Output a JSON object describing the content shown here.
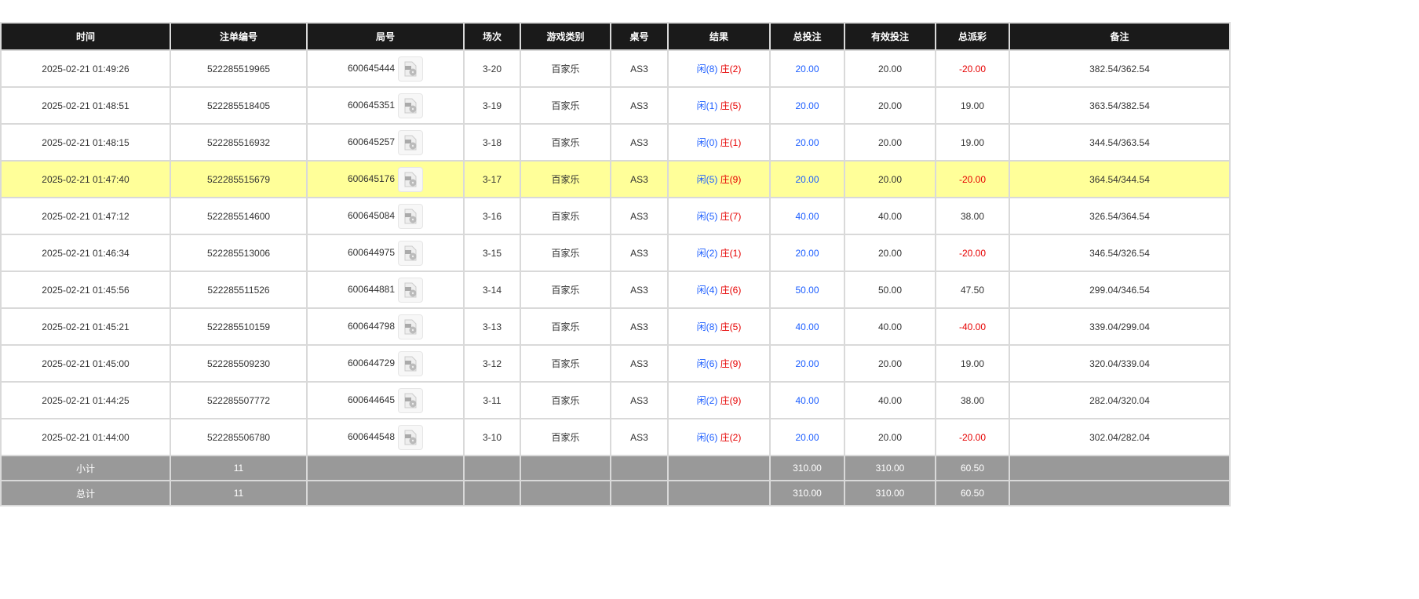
{
  "columns": [
    "时间",
    "注单编号",
    "局号",
    "场次",
    "游戏类别",
    "桌号",
    "结果",
    "总投注",
    "有效投注",
    "总派彩",
    "备注"
  ],
  "rows": [
    {
      "time": "2025-02-21 01:49:26",
      "bet_id": "522285519965",
      "round": "600645444",
      "shoe": "3-20",
      "game": "百家乐",
      "table": "AS3",
      "player": "闲(8)",
      "banker": "庄(2)",
      "total": "20.00",
      "valid": "20.00",
      "payout": "-20.00",
      "note": "382.54/362.54"
    },
    {
      "time": "2025-02-21 01:48:51",
      "bet_id": "522285518405",
      "round": "600645351",
      "shoe": "3-19",
      "game": "百家乐",
      "table": "AS3",
      "player": "闲(1)",
      "banker": "庄(5)",
      "total": "20.00",
      "valid": "20.00",
      "payout": "19.00",
      "note": "363.54/382.54"
    },
    {
      "time": "2025-02-21 01:48:15",
      "bet_id": "522285516932",
      "round": "600645257",
      "shoe": "3-18",
      "game": "百家乐",
      "table": "AS3",
      "player": "闲(0)",
      "banker": "庄(1)",
      "total": "20.00",
      "valid": "20.00",
      "payout": "19.00",
      "note": "344.54/363.54"
    },
    {
      "time": "2025-02-21 01:47:40",
      "bet_id": "522285515679",
      "round": "600645176",
      "shoe": "3-17",
      "game": "百家乐",
      "table": "AS3",
      "player": "闲(5)",
      "banker": "庄(9)",
      "total": "20.00",
      "valid": "20.00",
      "payout": "-20.00",
      "note": "364.54/344.54",
      "highlight": true
    },
    {
      "time": "2025-02-21 01:47:12",
      "bet_id": "522285514600",
      "round": "600645084",
      "shoe": "3-16",
      "game": "百家乐",
      "table": "AS3",
      "player": "闲(5)",
      "banker": "庄(7)",
      "total": "40.00",
      "valid": "40.00",
      "payout": "38.00",
      "note": "326.54/364.54"
    },
    {
      "time": "2025-02-21 01:46:34",
      "bet_id": "522285513006",
      "round": "600644975",
      "shoe": "3-15",
      "game": "百家乐",
      "table": "AS3",
      "player": "闲(2)",
      "banker": "庄(1)",
      "total": "20.00",
      "valid": "20.00",
      "payout": "-20.00",
      "note": "346.54/326.54"
    },
    {
      "time": "2025-02-21 01:45:56",
      "bet_id": "522285511526",
      "round": "600644881",
      "shoe": "3-14",
      "game": "百家乐",
      "table": "AS3",
      "player": "闲(4)",
      "banker": "庄(6)",
      "total": "50.00",
      "valid": "50.00",
      "payout": "47.50",
      "note": "299.04/346.54"
    },
    {
      "time": "2025-02-21 01:45:21",
      "bet_id": "522285510159",
      "round": "600644798",
      "shoe": "3-13",
      "game": "百家乐",
      "table": "AS3",
      "player": "闲(8)",
      "banker": "庄(5)",
      "total": "40.00",
      "valid": "40.00",
      "payout": "-40.00",
      "note": "339.04/299.04"
    },
    {
      "time": "2025-02-21 01:45:00",
      "bet_id": "522285509230",
      "round": "600644729",
      "shoe": "3-12",
      "game": "百家乐",
      "table": "AS3",
      "player": "闲(6)",
      "banker": "庄(9)",
      "total": "20.00",
      "valid": "20.00",
      "payout": "19.00",
      "note": "320.04/339.04"
    },
    {
      "time": "2025-02-21 01:44:25",
      "bet_id": "522285507772",
      "round": "600644645",
      "shoe": "3-11",
      "game": "百家乐",
      "table": "AS3",
      "player": "闲(2)",
      "banker": "庄(9)",
      "total": "40.00",
      "valid": "40.00",
      "payout": "38.00",
      "note": "282.04/320.04"
    },
    {
      "time": "2025-02-21 01:44:00",
      "bet_id": "522285506780",
      "round": "600644548",
      "shoe": "3-10",
      "game": "百家乐",
      "table": "AS3",
      "player": "闲(6)",
      "banker": "庄(2)",
      "total": "20.00",
      "valid": "20.00",
      "payout": "-20.00",
      "note": "302.04/282.04"
    }
  ],
  "summary": [
    {
      "label": "小计",
      "count": "11",
      "total": "310.00",
      "valid": "310.00",
      "payout": "60.50"
    },
    {
      "label": "总计",
      "count": "11",
      "total": "310.00",
      "valid": "310.00",
      "payout": "60.50"
    }
  ],
  "colors": {
    "header_bg": "#1a1a1a",
    "highlight_row": "#ffff99",
    "summary_bg": "#999999",
    "positive_blue": "#1a5cff",
    "negative_red": "#e60000"
  },
  "icons": {
    "replay": "video-replay-icon"
  }
}
